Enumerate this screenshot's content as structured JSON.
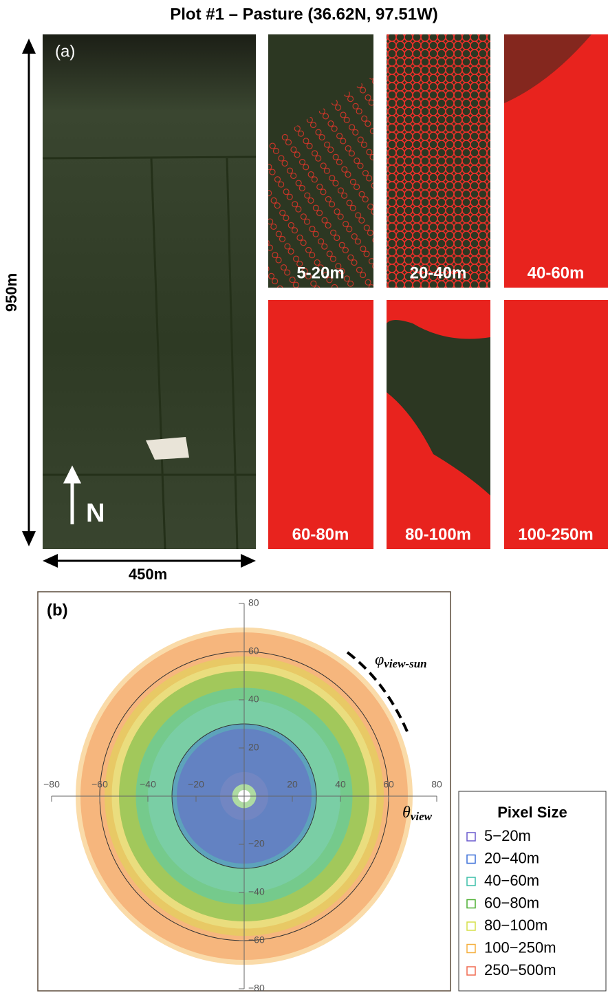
{
  "title": "Plot #1 – Pasture (36.62N, 97.51W)",
  "panel_a": {
    "label": "(a)",
    "height_label": "950m",
    "width_label": "450m",
    "north": "N",
    "tiles": [
      "5-20m",
      "20-40m",
      "40-60m",
      "60-80m",
      "80-100m",
      "100-250m"
    ]
  },
  "chart_data": {
    "type": "polar-scatter",
    "label": "(b)",
    "x_label": {
      "symbol": "θ",
      "subscript": "view"
    },
    "annotation": {
      "symbol": "φ",
      "subscript": "view-sun"
    },
    "xlim": [
      -80,
      80
    ],
    "ylim": [
      -80,
      80
    ],
    "xticks": [
      {
        "value": -80,
        "label": "−80"
      },
      {
        "value": -60,
        "label": "−60"
      },
      {
        "value": -40,
        "label": "−40"
      },
      {
        "value": -20,
        "label": "−20"
      },
      20,
      40,
      60,
      80
    ],
    "yticks": [
      80,
      60,
      40,
      20,
      {
        "value": -20,
        "label": "−20"
      },
      {
        "value": -40,
        "label": "−40"
      },
      {
        "value": -60,
        "label": "−60"
      },
      {
        "value": -80,
        "label": "−80"
      }
    ],
    "rings": [
      30,
      60
    ],
    "legend_title": "Pixel Size",
    "legend": "lower right",
    "series": [
      {
        "name": "5−20m",
        "color": "#6a5acd",
        "values": [
          5,
          28
        ]
      },
      {
        "name": "20−40m",
        "color": "#3a6fd8",
        "values": [
          5,
          30
        ]
      },
      {
        "name": "40−60m",
        "color": "#3bbfa8",
        "values": [
          10,
          45
        ]
      },
      {
        "name": "60−80m",
        "color": "#4caf30",
        "values": [
          2,
          52
        ]
      },
      {
        "name": "80−100m",
        "color": "#d6e04a",
        "values": [
          40,
          58
        ]
      },
      {
        "name": "100−250m",
        "color": "#f5b040",
        "values": [
          45,
          70
        ]
      },
      {
        "name": "250−500m",
        "color": "#f06a50",
        "values": [
          55,
          68
        ]
      }
    ]
  }
}
